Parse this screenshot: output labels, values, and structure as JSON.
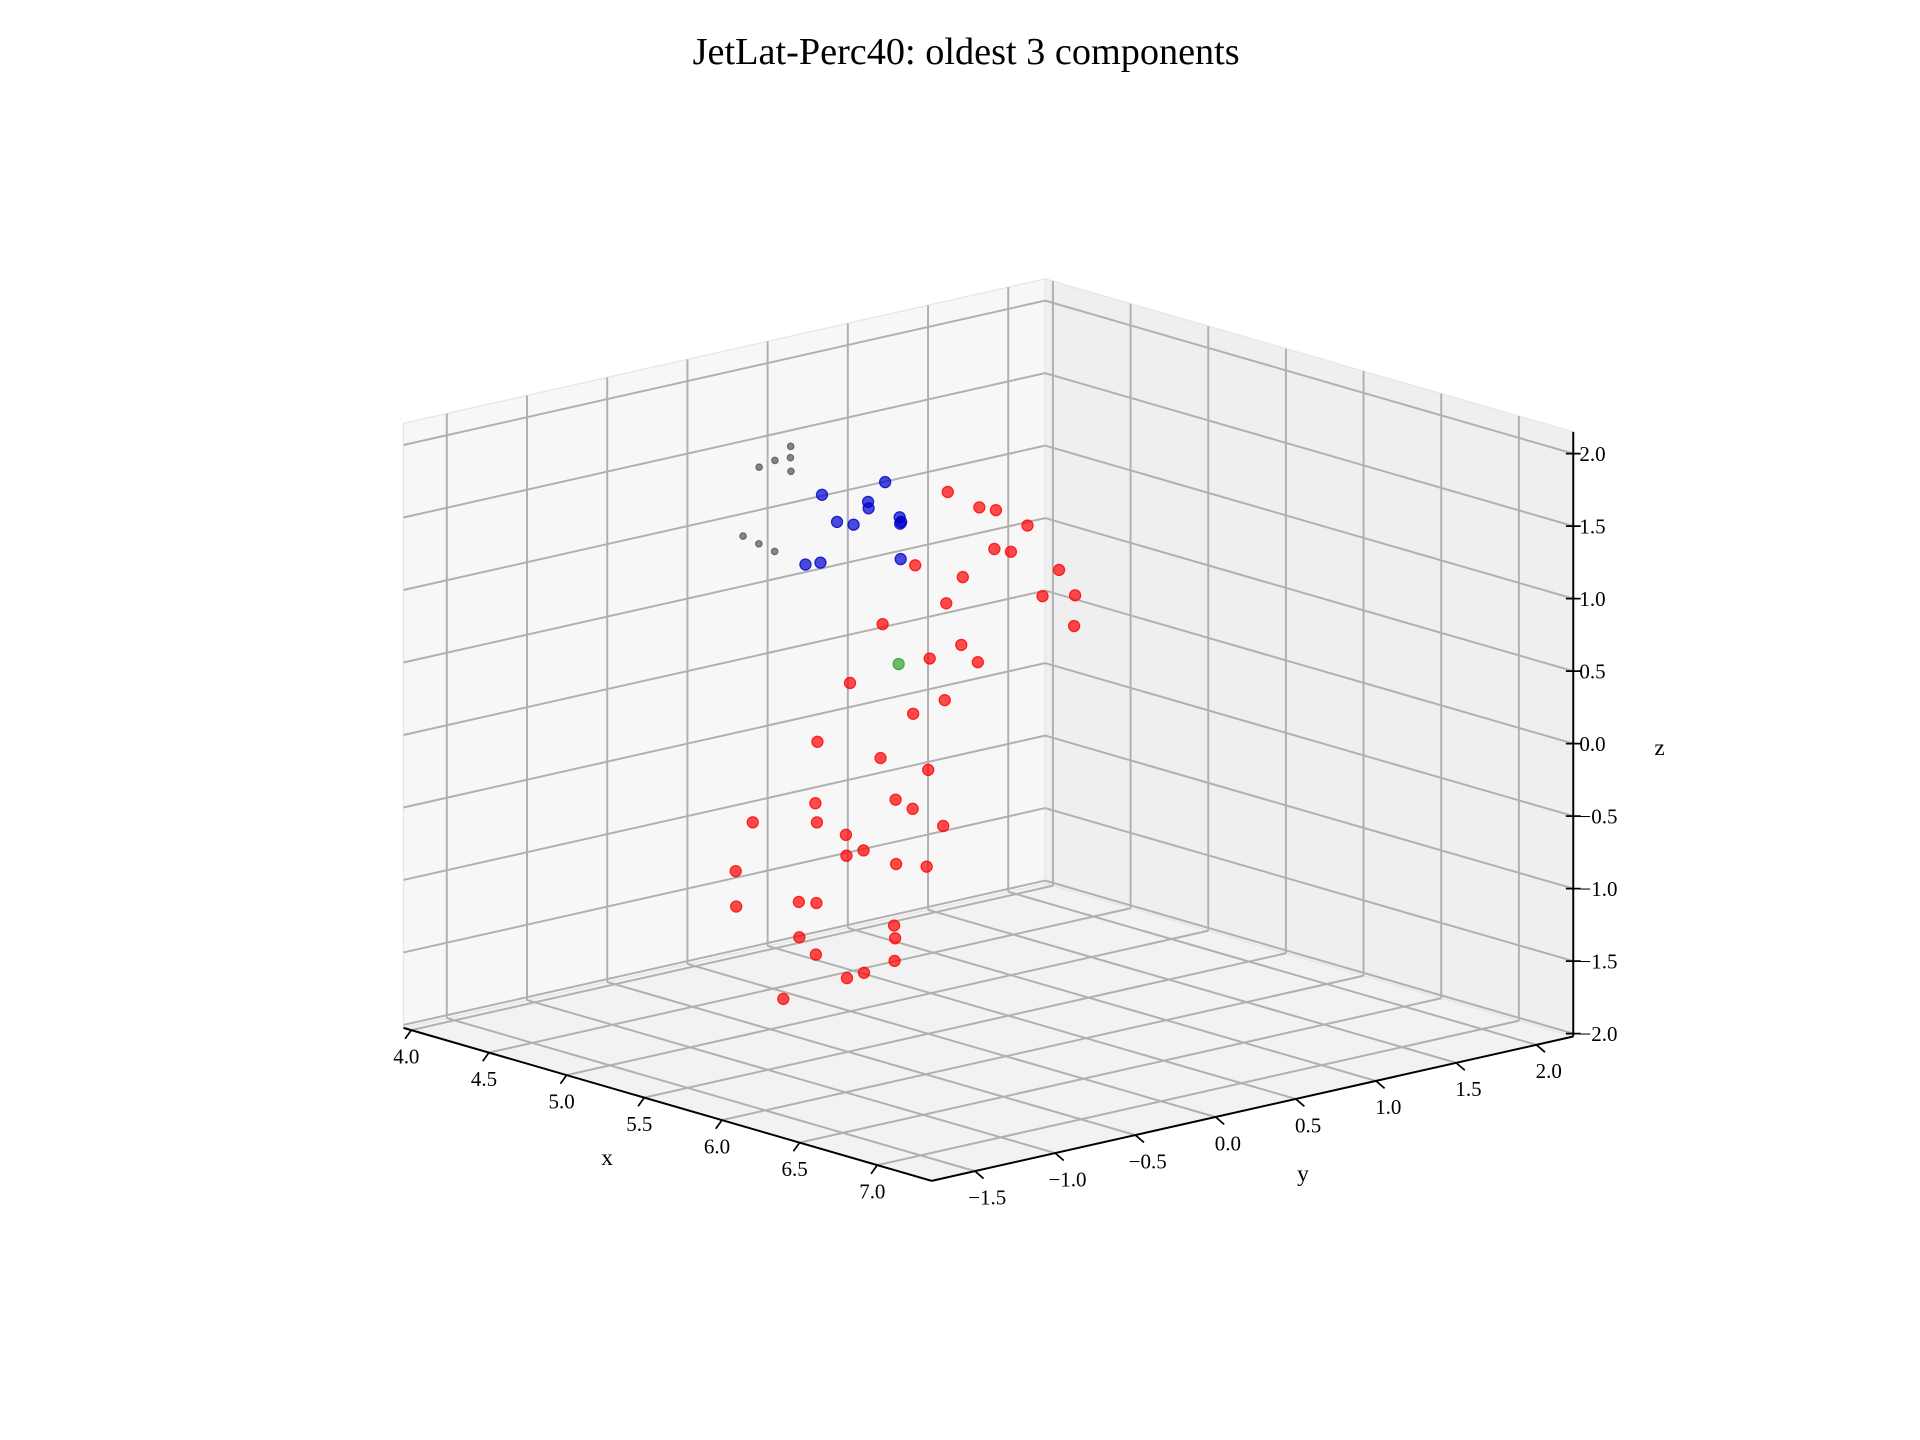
{
  "chart_data": {
    "type": "scatter3d",
    "title": "JetLat-Perc40: oldest 3 components",
    "xlabel": "x",
    "ylabel": "y",
    "zlabel": "z",
    "xlim": [
      3.95,
      7.35
    ],
    "ylim": [
      -1.77,
      2.23
    ],
    "zlim": [
      -2.02,
      2.15
    ],
    "xticks": [
      {
        "value": 4,
        "label": "4.0"
      },
      4.5,
      {
        "value": 5,
        "label": "5.0"
      },
      5.5,
      {
        "value": 6,
        "label": "6.0"
      },
      6.5,
      {
        "value": 7,
        "label": "7.0"
      }
    ],
    "yticks": [
      {
        "value": -1.5,
        "label": "−1.5"
      },
      {
        "value": -1,
        "label": "−1.0"
      },
      {
        "value": -0.5,
        "label": "−0.5"
      },
      {
        "value": 0,
        "label": "0.0"
      },
      0.5,
      {
        "value": 1,
        "label": "1.0"
      },
      1.5,
      {
        "value": 2,
        "label": "2.0"
      }
    ],
    "zticks": [
      {
        "value": -2,
        "label": "−2.0"
      },
      {
        "value": -1.5,
        "label": "−1.5"
      },
      {
        "value": -1,
        "label": "−1.0"
      },
      {
        "value": -0.5,
        "label": "−0.5"
      },
      {
        "value": 0,
        "label": "0.0"
      },
      0.5,
      {
        "value": 1,
        "label": "1.0"
      },
      1.5,
      {
        "value": 2,
        "label": "2.0"
      }
    ],
    "grid": true,
    "series": [
      {
        "color": "#0000cc",
        "x": [
          4.5,
          4.6,
          4.4,
          4.5,
          4.7,
          4.4,
          4.6,
          4.5,
          4.7,
          4.3,
          4.6,
          4.8
        ],
        "y": [
          0.4,
          0.5,
          0.6,
          0.7,
          0.6,
          0.3,
          0.2,
          0.8,
          0.4,
          0.5,
          0.7,
          0.5
        ],
        "z": [
          1.1,
          1.2,
          1.0,
          1.3,
          1.1,
          0.8,
          0.9,
          1.0,
          1.3,
          1.2,
          0.8,
          1.2
        ]
      },
      {
        "color": "#555555",
        "x": [
          4.1,
          4.15,
          4.1,
          4.2,
          4.05,
          4.1,
          4.15,
          4.05
        ],
        "y": [
          0.4,
          0.45,
          0.5,
          0.4,
          0.35,
          0.3,
          0.35,
          0.25
        ],
        "z": [
          1.4,
          1.5,
          1.3,
          1.45,
          1.35,
          0.85,
          0.8,
          0.9
        ]
      },
      {
        "color": "#2ca02c",
        "x": [
          5.0
        ],
        "y": [
          0.3
        ],
        "z": [
          0.3
        ]
      },
      {
        "color": "#ff0000",
        "x": [
          5.6,
          5.7,
          5.5,
          5.8,
          5.4,
          5.9,
          5.6,
          5.3,
          5.7,
          5.5,
          5.8,
          5.6,
          5.4,
          5.5,
          5.7,
          5.3,
          5.6,
          5.4,
          5.2,
          5.5,
          5.3,
          5.1,
          5.4,
          5.2,
          5.0,
          5.3,
          5.1,
          5.2,
          4.9,
          5.0,
          5.1,
          4.9,
          5.0,
          4.8,
          5.1,
          4.9,
          5.0,
          4.8,
          5.2,
          5.0,
          5.6,
          5.8,
          5.9,
          5.5,
          5.7,
          5.4
        ],
        "y": [
          -0.9,
          -1.0,
          -0.7,
          -0.8,
          -1.1,
          -0.6,
          -0.5,
          -0.9,
          -0.4,
          -1.2,
          -0.3,
          -0.8,
          -0.6,
          -0.2,
          -0.7,
          -0.5,
          -0.3,
          -0.2,
          -0.4,
          0.0,
          0.1,
          -0.1,
          0.2,
          0.3,
          0.2,
          0.4,
          0.5,
          0.6,
          0.5,
          0.7,
          0.8,
          0.9,
          1.0,
          0.8,
          1.1,
          1.2,
          1.3,
          1.1,
          1.2,
          1.4,
          -1.0,
          -0.5,
          -0.9,
          -0.4,
          -0.1,
          0.0
        ],
        "z": [
          -1.1,
          -0.8,
          -1.3,
          -0.5,
          -0.9,
          -1.0,
          -0.6,
          -0.4,
          -1.2,
          -0.6,
          -0.7,
          -0.2,
          -1.0,
          -0.8,
          -1.4,
          -0.5,
          -0.3,
          -0.1,
          0.0,
          -0.2,
          0.1,
          0.3,
          0.2,
          0.4,
          0.6,
          0.5,
          0.7,
          0.3,
          0.9,
          0.8,
          1.0,
          1.2,
          0.9,
          1.3,
          0.6,
          1.0,
          0.7,
          1.1,
          0.4,
          0.5,
          -1.5,
          -1.3,
          -0.3,
          -1.5,
          -0.5,
          -0.5
        ]
      }
    ]
  }
}
